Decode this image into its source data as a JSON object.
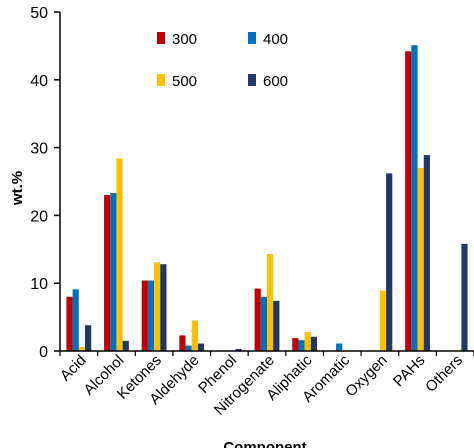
{
  "chart_data": {
    "type": "bar",
    "xlabel": "Component",
    "ylabel": "wt.%",
    "ylim": [
      0,
      50
    ],
    "yticks": [
      "0",
      "10",
      "20",
      "30",
      "40",
      "50"
    ],
    "grid": false,
    "legend_position": "top-left",
    "categories": [
      "Acid",
      "Alcohol",
      "Ketones",
      "Aldehyde",
      "Phenol",
      "Nitrogenate",
      "Aliphatic",
      "Aromatic",
      "Oxygen",
      "PAHs",
      "Others"
    ],
    "series": [
      {
        "name": "300",
        "color": "#c00000",
        "values": [
          8.0,
          23.0,
          10.4,
          2.3,
          0.0,
          9.2,
          1.9,
          0.0,
          0.0,
          44.2,
          0.0
        ]
      },
      {
        "name": "400",
        "color": "#0070c0",
        "values": [
          9.1,
          23.3,
          10.4,
          0.8,
          0.0,
          8.0,
          1.6,
          1.1,
          0.0,
          45.1,
          0.0
        ]
      },
      {
        "name": "500",
        "color": "#ffc000",
        "values": [
          0.6,
          28.4,
          13.1,
          4.5,
          0.0,
          14.3,
          2.8,
          0.0,
          8.9,
          27.0,
          0.0
        ]
      },
      {
        "name": "600",
        "color": "#1f3864",
        "values": [
          3.8,
          1.5,
          12.8,
          1.1,
          0.3,
          7.4,
          2.1,
          0.0,
          26.2,
          28.9,
          15.8
        ]
      }
    ]
  }
}
